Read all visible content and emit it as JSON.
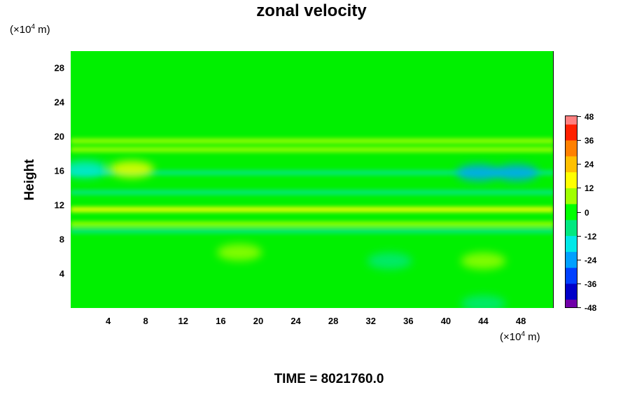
{
  "chart_data": {
    "type": "heatmap",
    "title": "zonal velocity",
    "ylabel": "Height",
    "x_unit_prefix": "(×10",
    "x_unit_exp": "4",
    "x_unit_suffix": " m)",
    "y_unit_prefix": "(×10",
    "y_unit_exp": "4",
    "y_unit_suffix": " m)",
    "xlim": [
      0,
      51.5
    ],
    "ylim": [
      0,
      30
    ],
    "x_ticks": [
      "4",
      "8",
      "12",
      "16",
      "20",
      "24",
      "28",
      "32",
      "36",
      "40",
      "44",
      "48"
    ],
    "y_ticks": [
      "4",
      "8",
      "12",
      "16",
      "20",
      "24",
      "28"
    ],
    "colorbar": {
      "range": [
        -48,
        48
      ],
      "ticks": [
        "48",
        "36",
        "24",
        "12",
        "0",
        "-12",
        "-24",
        "-36",
        "-48"
      ]
    },
    "colormap": [
      "#7000a8",
      "#0000c8",
      "#0040ff",
      "#00a0ff",
      "#00e8e8",
      "#00e880",
      "#00ff00",
      "#a0ff00",
      "#ffff00",
      "#ffc000",
      "#ff8000",
      "#ff2000",
      "#ff8080"
    ],
    "layers_description_values": {
      "bands": [
        {
          "y": 19.5,
          "value": 8
        },
        {
          "y": 18.5,
          "value": 6
        },
        {
          "y": 15.8,
          "value": -12
        },
        {
          "y": 13.5,
          "value": -6
        },
        {
          "y": 11.5,
          "value": 12
        },
        {
          "y": 9.8,
          "value": 10
        },
        {
          "y": 9.0,
          "value": -8
        }
      ],
      "spots": [
        {
          "x": 1.5,
          "y": 16.2,
          "value": -20
        },
        {
          "x": 6.5,
          "y": 16.2,
          "value": 14
        },
        {
          "x": 43.5,
          "y": 15.8,
          "value": -22
        },
        {
          "x": 47.5,
          "y": 15.8,
          "value": -28
        },
        {
          "x": 18,
          "y": 6.5,
          "value": 8
        },
        {
          "x": 44,
          "y": 5.5,
          "value": 8
        },
        {
          "x": 34,
          "y": 5.5,
          "value": -6
        },
        {
          "x": 44,
          "y": 0.5,
          "value": -10
        }
      ]
    }
  },
  "footer": {
    "time_label": "TIME = 8021760.0"
  }
}
